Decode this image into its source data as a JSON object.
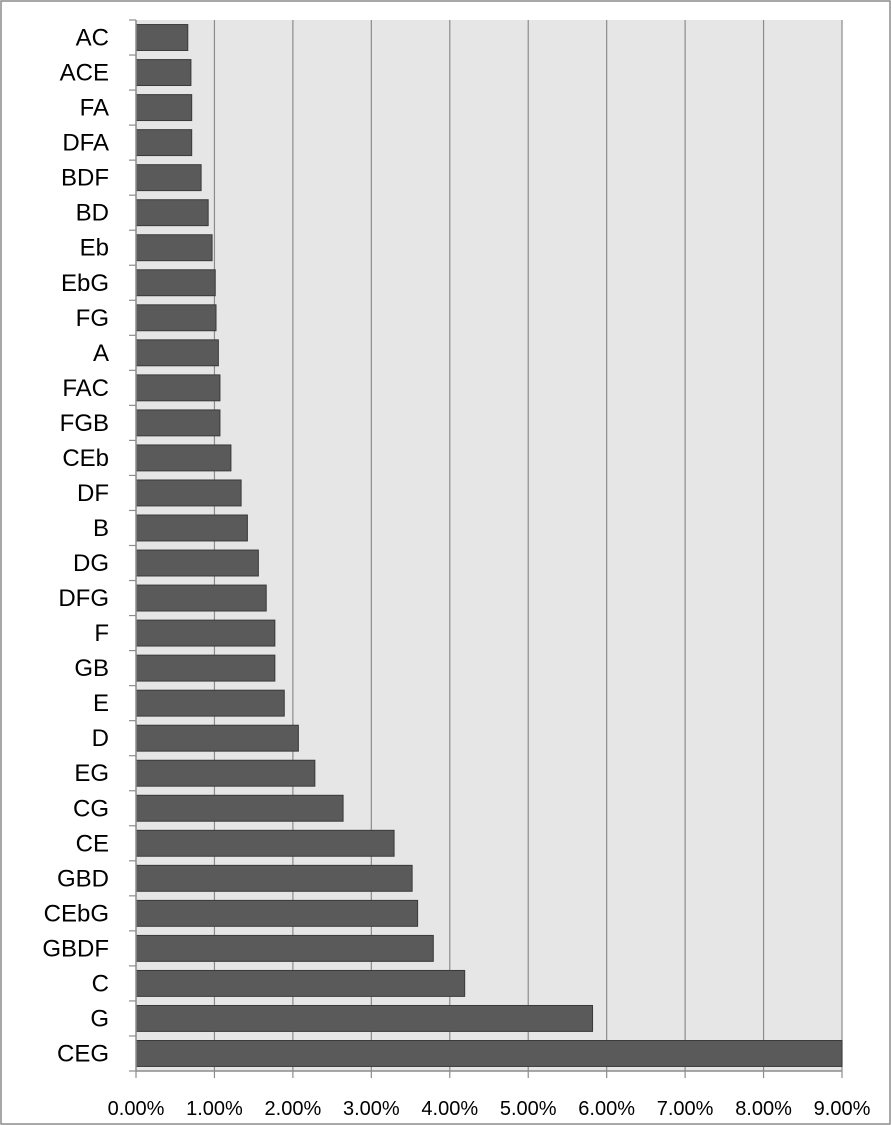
{
  "chart_data": {
    "type": "bar",
    "orientation": "horizontal",
    "categories": [
      "AC",
      "ACE",
      "FA",
      "DFA",
      "BDF",
      "BD",
      "Eb",
      "EbG",
      "FG",
      "A",
      "FAC",
      "FGB",
      "CEb",
      "DF",
      "B",
      "DG",
      "DFG",
      "F",
      "GB",
      "E",
      "D",
      "EG",
      "CG",
      "CE",
      "GBD",
      "CEbG",
      "GBDF",
      "C",
      "G",
      "CEG"
    ],
    "values": [
      0.66,
      0.7,
      0.71,
      0.71,
      0.83,
      0.92,
      0.97,
      1.01,
      1.02,
      1.05,
      1.07,
      1.07,
      1.21,
      1.34,
      1.42,
      1.56,
      1.66,
      1.77,
      1.77,
      1.89,
      2.07,
      2.28,
      2.64,
      3.29,
      3.52,
      3.59,
      3.79,
      4.19,
      5.82,
      9.0
    ],
    "xlim": [
      0,
      9
    ],
    "x_ticks": [
      0,
      1,
      2,
      3,
      4,
      5,
      6,
      7,
      8,
      9
    ],
    "x_tick_labels": [
      "0.00%",
      "1.00%",
      "2.00%",
      "3.00%",
      "4.00%",
      "5.00%",
      "6.00%",
      "7.00%",
      "8.00%",
      "9.00%"
    ],
    "title": "",
    "xlabel": "",
    "ylabel": "",
    "grid": "vertical",
    "legend": "none",
    "colors": {
      "bar_fill": "#5a5a5a",
      "bar_stroke": "#3a3a3a",
      "plot_bg": "#e6e6e6",
      "gridline": "#8c8c8c",
      "axis": "#8c8c8c",
      "outer_border": "#8c8c8c"
    }
  }
}
